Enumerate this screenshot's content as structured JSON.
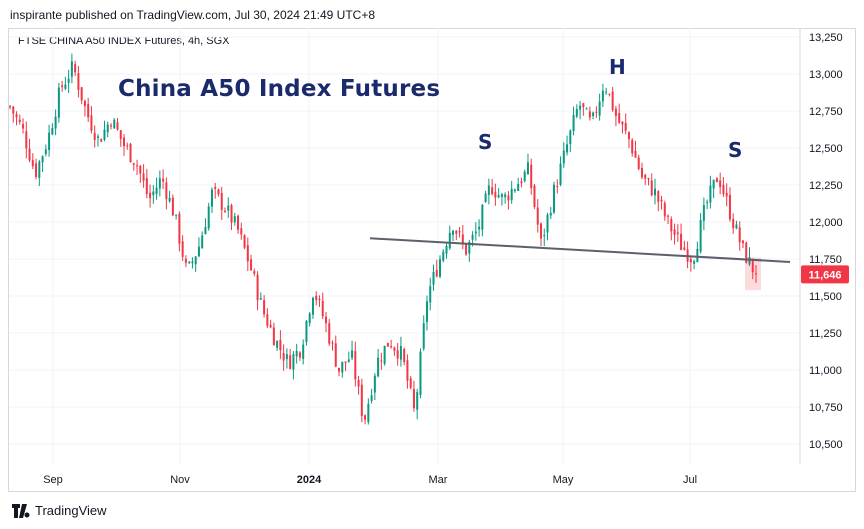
{
  "header": {
    "publisher_line": "inspirante published on TradingView.com, Jul 30, 2024 21:49 UTC+8",
    "series_title": "FTSE CHINA A50 INDEX Futures, 4h, SGX"
  },
  "annotations": {
    "title": "China A50 Index Futures",
    "left_shoulder": "S",
    "head": "H",
    "right_shoulder": "S"
  },
  "footer": {
    "brand": "TradingView"
  },
  "colors": {
    "up": "#089981",
    "down": "#f23645",
    "neckline": "#5d606b",
    "price_label_bg": "#f23645",
    "title": "#1a2a6c"
  },
  "chart_data": {
    "type": "candlestick",
    "title": "China A50 Index Futures",
    "series_name": "FTSE CHINA A50 INDEX Futures, 4h, SGX",
    "x_ticks": [
      "Sep",
      "Nov",
      "2024",
      "Mar",
      "May",
      "Jul"
    ],
    "y_ticks": [
      "13,250",
      "13,000",
      "12,750",
      "12,500",
      "12,250",
      "12,000",
      "11,750",
      "11,500",
      "11,250",
      "11,000",
      "10,750",
      "10,500"
    ],
    "y_tick_values": [
      13250,
      13000,
      12750,
      12500,
      12250,
      12000,
      11750,
      11500,
      11250,
      11000,
      10750,
      10500
    ],
    "ylim": [
      10400,
      13300
    ],
    "last_price": 11646,
    "last_price_label": "11,646",
    "grid": true,
    "neckline": {
      "from": [
        "Jan 2024 (late)",
        11890
      ],
      "to": [
        "Aug 2024",
        11730
      ]
    },
    "price_path": [
      [
        "Aug 2023",
        12780
      ],
      [
        "Aug 2023",
        12620
      ],
      [
        "Aug 2023",
        12330
      ],
      [
        "Aug 2023",
        12560
      ],
      [
        "Aug 2023",
        12900
      ],
      [
        "Aug 2023",
        13050
      ],
      [
        "Sep 2023",
        12750
      ],
      [
        "Sep 2023",
        12550
      ],
      [
        "Sep 2023",
        12700
      ],
      [
        "Sep 2023",
        12520
      ],
      [
        "Oct 2023",
        12400
      ],
      [
        "Oct 2023",
        12150
      ],
      [
        "Oct 2023",
        12300
      ],
      [
        "Oct 2023",
        12050
      ],
      [
        "Oct 2023",
        11650
      ],
      [
        "Oct 2023",
        11850
      ],
      [
        "Nov 2023",
        12200
      ],
      [
        "Nov 2023",
        12100
      ],
      [
        "Nov 2023",
        11950
      ],
      [
        "Nov 2023",
        11700
      ],
      [
        "Nov 2023",
        11400
      ],
      [
        "Dec 2023",
        11200
      ],
      [
        "Dec 2023",
        11050
      ],
      [
        "Dec 2023",
        11150
      ],
      [
        "Dec 2023",
        11550
      ],
      [
        "Dec 2023",
        11300
      ],
      [
        "Jan 2024",
        11000
      ],
      [
        "Jan 2024",
        11100
      ],
      [
        "Jan 2024",
        10650
      ],
      [
        "Jan 2024",
        11050
      ],
      [
        "Jan 2024",
        11200
      ],
      [
        "Feb 2024",
        11100
      ],
      [
        "Feb 2024",
        10700
      ],
      [
        "Feb 2024",
        11500
      ],
      [
        "Feb 2024",
        11750
      ],
      [
        "Feb 2024",
        12000
      ],
      [
        "Mar 2024",
        11800
      ],
      [
        "Mar 2024",
        11950
      ],
      [
        "Mar 2024",
        12250
      ],
      [
        "Mar 2024",
        12150
      ],
      [
        "Apr 2024",
        12250
      ],
      [
        "Apr 2024",
        12350
      ],
      [
        "Apr 2024",
        11850
      ],
      [
        "Apr 2024",
        12200
      ],
      [
        "Apr 2024",
        12500
      ],
      [
        "May 2024",
        12800
      ],
      [
        "May 2024",
        12650
      ],
      [
        "May 2024",
        12950
      ],
      [
        "May 2024",
        12700
      ],
      [
        "Jun 2024",
        12550
      ],
      [
        "Jun 2024",
        12300
      ],
      [
        "Jun 2024",
        12200
      ],
      [
        "Jun 2024",
        12000
      ],
      [
        "Jun 2024",
        11850
      ],
      [
        "Jul 2024",
        11750
      ],
      [
        "Jul 2024",
        12100
      ],
      [
        "Jul 2024",
        12320
      ],
      [
        "Jul 2024",
        12050
      ],
      [
        "Jul 2024",
        11800
      ],
      [
        "Jul 2024",
        11646
      ]
    ]
  }
}
